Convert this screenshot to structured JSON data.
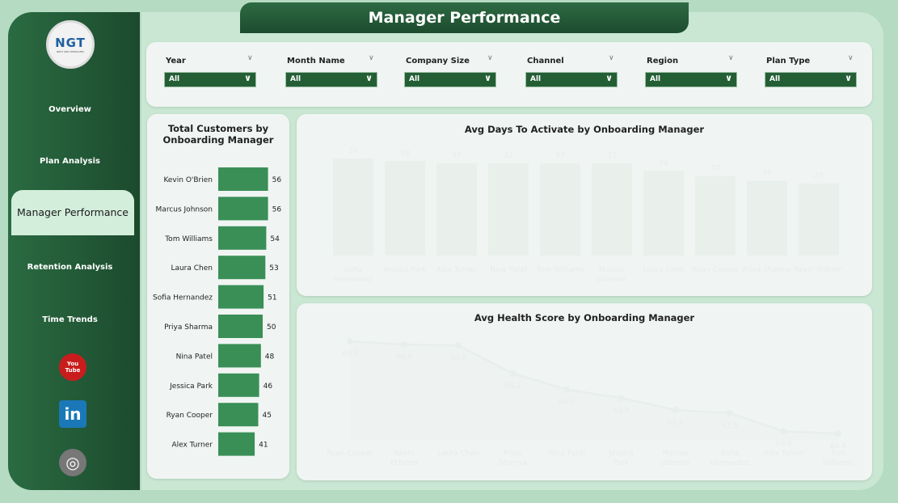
{
  "header": {
    "title": "Manager Performance"
  },
  "logo": {
    "text": "NGT",
    "subtext": "NEXT GEN TEMPLATES"
  },
  "sidebar": {
    "items": [
      {
        "label": "Overview"
      },
      {
        "label": "Plan Analysis"
      },
      {
        "label": "Manager Performance",
        "active": true
      },
      {
        "label": "Retention Analysis"
      },
      {
        "label": "Time Trends"
      }
    ],
    "social": [
      {
        "icon": "youtube-icon",
        "label": "You Tube"
      },
      {
        "icon": "linkedin-icon",
        "label": "in"
      },
      {
        "icon": "globe-icon"
      }
    ]
  },
  "filters": [
    {
      "label": "Year",
      "value": "All"
    },
    {
      "label": "Month Name",
      "value": "All"
    },
    {
      "label": "Company Size",
      "value": "All"
    },
    {
      "label": "Channel",
      "value": "All"
    },
    {
      "label": "Region",
      "value": "All"
    },
    {
      "label": "Plan Type",
      "value": "All"
    }
  ],
  "colors": {
    "bar": "#3a8f57",
    "line": "#2e6b3f",
    "area": "#9dbfa7",
    "dark": "#1f4f30"
  },
  "chart_data": [
    {
      "type": "bar",
      "orientation": "horizontal",
      "title": "Total Customers by Onboarding Manager",
      "categories": [
        "Kevin O'Brien",
        "Marcus Johnson",
        "Tom Williams",
        "Laura Chen",
        "Sofia Hernandez",
        "Priya Sharma",
        "Nina Patel",
        "Jessica Park",
        "Ryan Cooper",
        "Alex Turner"
      ],
      "values": [
        56,
        56,
        54,
        53,
        51,
        50,
        48,
        46,
        45,
        41
      ]
    },
    {
      "type": "bar",
      "title": "Avg Days To Activate by Onboarding Manager",
      "categories": [
        "Sofia Hernandez",
        "Jessica Park",
        "Alex Turner",
        "Nina Patel",
        "Tom Williams",
        "Marcus Johnson",
        "Laura Chen",
        "Ryan Cooper",
        "Priya Sharma",
        "Kevin O'Brien"
      ],
      "values": [
        39,
        38,
        37,
        37,
        37,
        37,
        34,
        32,
        30,
        29
      ]
    },
    {
      "type": "area",
      "title": "Avg Health Score by Onboarding Manager",
      "categories": [
        "Ryan Cooper",
        "Kevin O'Brien",
        "Laura Chen",
        "Priya Sharma",
        "Nina Patel",
        "Jessica Park",
        "Marcus Johnson",
        "Sofia Hernandez",
        "Alex Turner",
        "Tom Williams"
      ],
      "values": [
        69.2,
        68.9,
        68.8,
        66.2,
        64.7,
        63.9,
        62.8,
        62.5,
        60.8,
        60.6
      ]
    }
  ]
}
